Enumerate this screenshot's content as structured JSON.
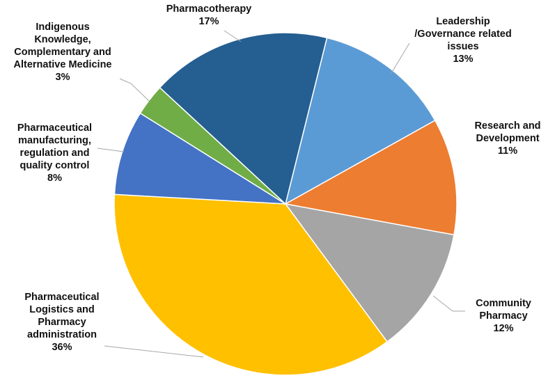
{
  "chart_data": {
    "type": "pie",
    "title": "",
    "slices": [
      {
        "label": [
          "Leadership",
          "/Governance related",
          "issues"
        ],
        "value": 13,
        "value_label": "13%",
        "color": "#5b9bd5"
      },
      {
        "label": [
          "Research and",
          "Development"
        ],
        "value": 11,
        "value_label": "11%",
        "color": "#ed7d31"
      },
      {
        "label": [
          "Community",
          "Pharmacy"
        ],
        "value": 12,
        "value_label": "12%",
        "color": "#a5a5a5"
      },
      {
        "label": [
          "Pharmaceutical",
          "Logistics and",
          "Pharmacy",
          "administration"
        ],
        "value": 36,
        "value_label": "36%",
        "color": "#ffc000"
      },
      {
        "label": [
          "Pharmaceutical",
          "manufacturing,",
          "regulation and",
          "quality control"
        ],
        "value": 8,
        "value_label": "8%",
        "color": "#4472c4"
      },
      {
        "label": [
          "Indigenous",
          "Knowledge,",
          "Complementary and",
          "Alternative Medicine"
        ],
        "value": 3,
        "value_label": "3%",
        "color": "#70ad47"
      },
      {
        "label": [
          "Pharmacotherapy"
        ],
        "value": 17,
        "value_label": "17%",
        "color": "#255e91"
      }
    ]
  }
}
